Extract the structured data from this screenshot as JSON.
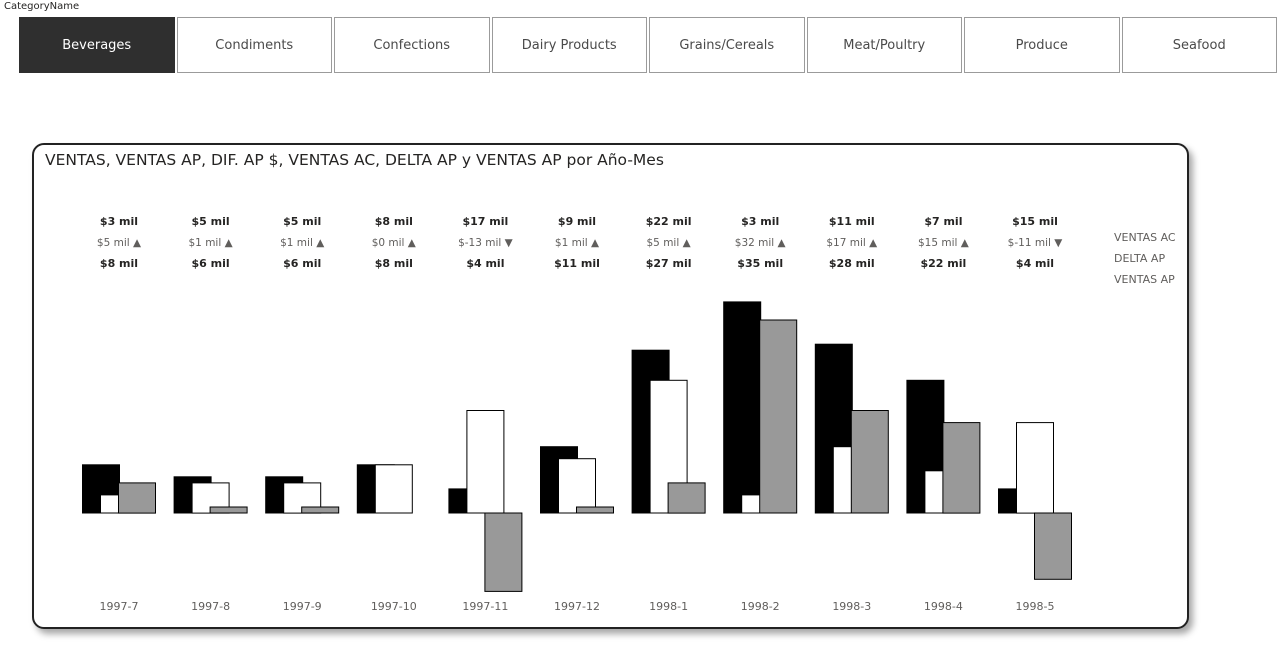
{
  "slicer": {
    "title": "CategoryName",
    "items": [
      {
        "label": "Beverages",
        "selected": true
      },
      {
        "label": "Condiments",
        "selected": false
      },
      {
        "label": "Confections",
        "selected": false
      },
      {
        "label": "Dairy Products",
        "selected": false
      },
      {
        "label": "Grains/Cereals",
        "selected": false
      },
      {
        "label": "Meat/Poultry",
        "selected": false
      },
      {
        "label": "Produce",
        "selected": false
      },
      {
        "label": "Seafood",
        "selected": false
      }
    ]
  },
  "colors": {
    "ventas_ac": "#000000",
    "delta_ap": "#ffffff",
    "ventas_ap": "#999999",
    "selected_tile": "#2f2f2f"
  },
  "chart_data": {
    "type": "bar",
    "title": "VENTAS, VENTAS AP, DIF. AP $, VENTAS AC, DELTA AP y VENTAS AP por Año-Mes",
    "categories": [
      "1997-7",
      "1997-8",
      "1997-9",
      "1997-10",
      "1997-11",
      "1997-12",
      "1998-1",
      "1998-2",
      "1998-3",
      "1998-4",
      "1998-5"
    ],
    "legend": [
      "VENTAS AC",
      "DELTA AP",
      "VENTAS AP"
    ],
    "legend_position": "right",
    "series": [
      {
        "name": "VENTAS AC",
        "values": [
          8,
          6,
          6,
          8,
          4,
          11,
          27,
          35,
          28,
          22,
          4
        ]
      },
      {
        "name": "DELTA AP",
        "values": [
          3,
          5,
          5,
          8,
          17,
          9,
          22,
          3,
          11,
          7,
          15
        ]
      },
      {
        "name": "VENTAS AP",
        "values": [
          5,
          1,
          1,
          0,
          -13,
          1,
          5,
          32,
          17,
          15,
          -11
        ]
      }
    ],
    "labels": {
      "top": [
        "$3 mil",
        "$5 mil",
        "$5 mil",
        "$8 mil",
        "$17 mil",
        "$9 mil",
        "$22 mil",
        "$3 mil",
        "$11 mil",
        "$7 mil",
        "$15 mil"
      ],
      "delta": [
        "$5 mil",
        "$1 mil",
        "$1 mil",
        "$0 mil",
        "$-13 mil",
        "$1 mil",
        "$5 mil",
        "$32 mil",
        "$17 mil",
        "$15 mil",
        "$-11 mil"
      ],
      "delta_dir": [
        "up",
        "up",
        "up",
        "up",
        "down",
        "up",
        "up",
        "up",
        "up",
        "up",
        "down"
      ],
      "bottom": [
        "$8 mil",
        "$6 mil",
        "$6 mil",
        "$8 mil",
        "$4 mil",
        "$11 mil",
        "$27 mil",
        "$35 mil",
        "$28 mil",
        "$22 mil",
        "$4 mil"
      ]
    },
    "ylim": [
      -14,
      36
    ],
    "grid": false
  }
}
